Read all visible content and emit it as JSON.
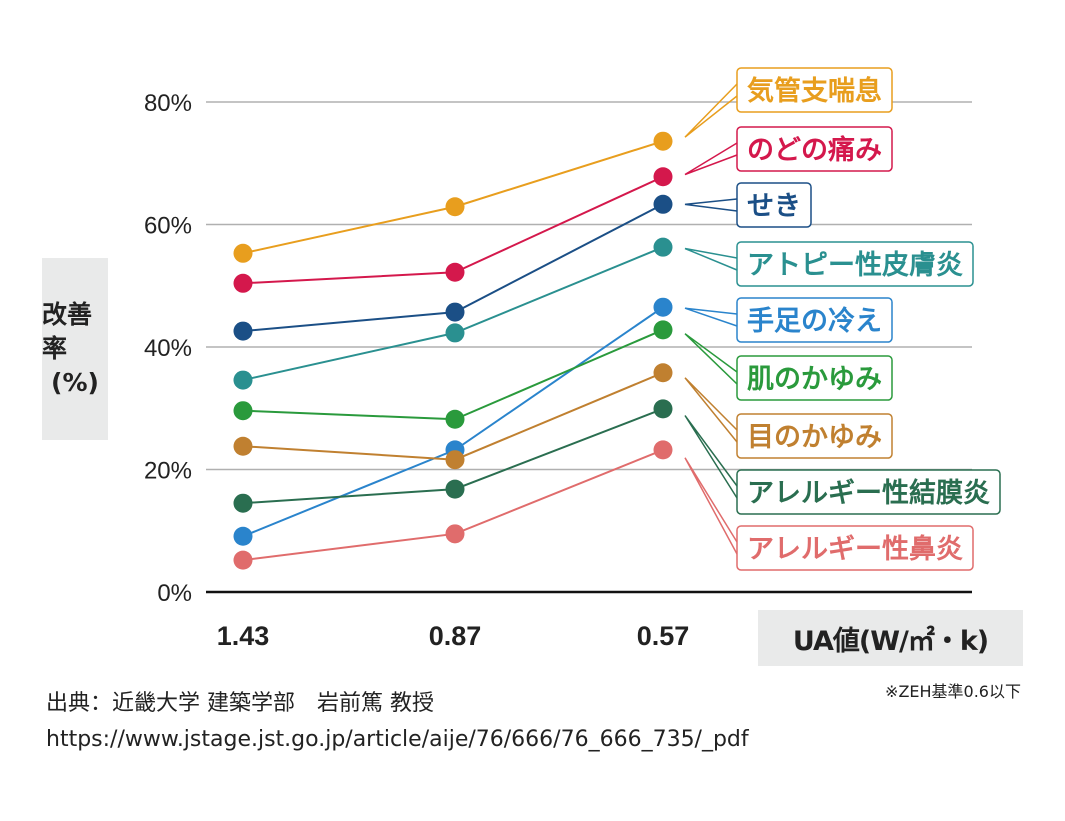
{
  "chart_data": {
    "type": "line",
    "title": "",
    "xlabel": "UA値(W/㎡・k)",
    "ylabel_lines": [
      "改善率",
      "(%)"
    ],
    "categories": [
      "1.43",
      "0.87",
      "0.57"
    ],
    "ylim": [
      0,
      80
    ],
    "yticks": [
      0,
      20,
      40,
      60,
      80
    ],
    "ytick_labels": [
      "0%",
      "20%",
      "40%",
      "60%",
      "80%"
    ],
    "grid": true,
    "legend_placement": "right (callout labels)",
    "series": [
      {
        "name": "気管支喘息",
        "color": "#E89E1E",
        "values": [
          55.3,
          62.9,
          73.6
        ]
      },
      {
        "name": "のどの痛み",
        "color": "#D4184C",
        "values": [
          50.4,
          52.2,
          67.8
        ]
      },
      {
        "name": "せき",
        "color": "#1B4F86",
        "values": [
          42.6,
          45.7,
          63.3
        ]
      },
      {
        "name": "アトピー性皮膚炎",
        "color": "#2A9090",
        "values": [
          34.6,
          42.3,
          56.3
        ]
      },
      {
        "name": "手足の冷え",
        "color": "#2A84CC",
        "values": [
          9.1,
          23.2,
          46.5
        ]
      },
      {
        "name": "肌のかゆみ",
        "color": "#2A9A3C",
        "values": [
          29.6,
          28.2,
          42.8
        ]
      },
      {
        "name": "目のかゆみ",
        "color": "#C08030",
        "values": [
          23.8,
          21.6,
          35.8
        ]
      },
      {
        "name": "アレルギー性結膜炎",
        "color": "#2A6E50",
        "values": [
          14.5,
          16.8,
          29.9
        ]
      },
      {
        "name": "アレルギー性鼻炎",
        "color": "#E06C6C",
        "values": [
          5.2,
          9.5,
          23.2
        ]
      }
    ]
  },
  "note": "※ZEH基準0.6以下",
  "source": {
    "line1": "出典：近畿大学 建築学部　岩前篤 教授",
    "line2": "https://www.jstage.jst.go.jp/article/aije/76/666/76_666_735/_pdf"
  }
}
